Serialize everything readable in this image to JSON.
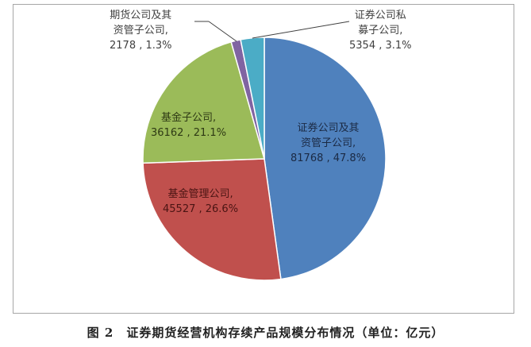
{
  "chart_data": {
    "type": "pie",
    "title": "图 2   证券期货经营机构存续产品规模分布情况（单位：亿元）",
    "unit": "亿元",
    "slices": [
      {
        "name": "证券公司及其资管子公司",
        "value": 81768,
        "percent": 47.8,
        "color": "#4f81bd"
      },
      {
        "name": "基金管理公司",
        "value": 45527,
        "percent": 26.6,
        "color": "#c0504d"
      },
      {
        "name": "基金子公司",
        "value": 36162,
        "percent": 21.1,
        "color": "#9bbb59"
      },
      {
        "name": "期货公司及其资管子公司",
        "value": 2178,
        "percent": 1.3,
        "color": "#8064a2"
      },
      {
        "name": "证券公司私募子公司",
        "value": 5354,
        "percent": 3.1,
        "color": "#4bacc6"
      }
    ],
    "categories": [
      "证券公司及其资管子公司",
      "基金管理公司",
      "基金子公司",
      "期货公司及其资管子公司",
      "证券公司私募子公司"
    ],
    "values": [
      81768,
      45527,
      36162,
      2178,
      5354
    ],
    "start_angle_deg": 0,
    "direction": "clockwise",
    "legend": "none (data labels)"
  },
  "labels": {
    "securities": {
      "line1": "证券公司及其",
      "line2": "资管子公司,",
      "line3": "81768 , 47.8%"
    },
    "fund_mgmt": {
      "line1": "基金管理公司,",
      "line2": "45527 , 26.6%"
    },
    "fund_sub": {
      "line1": "基金子公司,",
      "line2": "36162 , 21.1%"
    },
    "futures": {
      "line1": "期货公司及其",
      "line2": "资管子公司,",
      "line3": "2178 , 1.3%"
    },
    "private": {
      "line1": "证券公司私",
      "line2": "募子公司,",
      "line3": "5354 , 3.1%"
    }
  },
  "caption": "图 2　证券期货经营机构存续产品规模分布情况（单位：亿元）"
}
